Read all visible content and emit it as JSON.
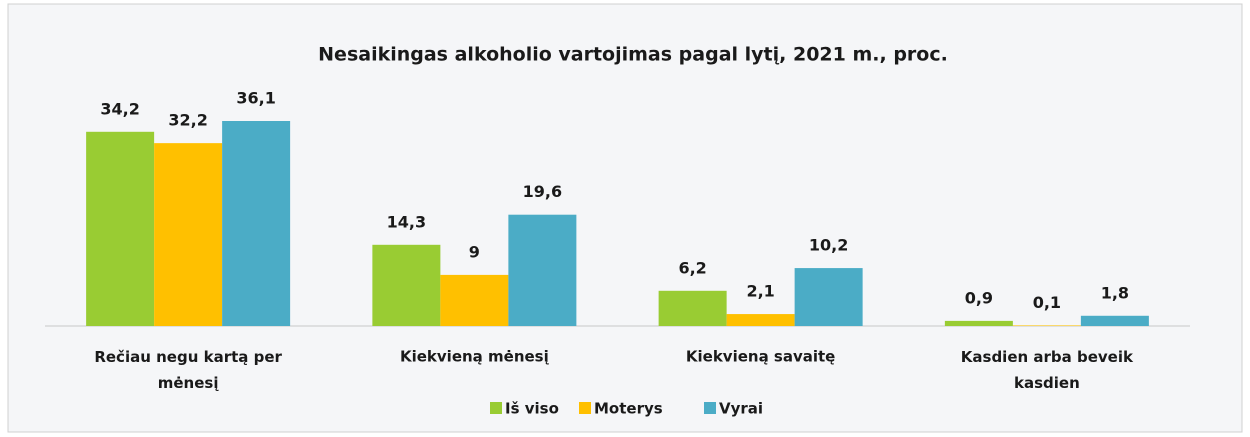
{
  "chart_data": {
    "type": "bar",
    "title": "Nesaikingas alkoholio vartojimas pagal lytį, 2021 m., proc.",
    "categories": [
      "Rečiau negu kartą per mėnesį",
      "Kiekvieną mėnesį",
      "Kiekvieną savaitę",
      "Kasdien arba beveik kasdien"
    ],
    "series": [
      {
        "name": "Iš viso",
        "color": "#99cc33",
        "values": [
          34.2,
          14.3,
          6.2,
          0.9
        ],
        "value_labels": [
          "34,2",
          "14,3",
          "6,2",
          "0,9"
        ]
      },
      {
        "name": "Moterys",
        "color": "#ffc000",
        "values": [
          32.2,
          9,
          2.1,
          0.1
        ],
        "value_labels": [
          "32,2",
          "9",
          "2,1",
          "0,1"
        ]
      },
      {
        "name": "Vyrai",
        "color": "#4bacc6",
        "values": [
          36.1,
          19.6,
          10.2,
          1.8
        ],
        "value_labels": [
          "36,1",
          "19,6",
          "10,2",
          "1,8"
        ]
      }
    ],
    "legend": "bottom"
  }
}
